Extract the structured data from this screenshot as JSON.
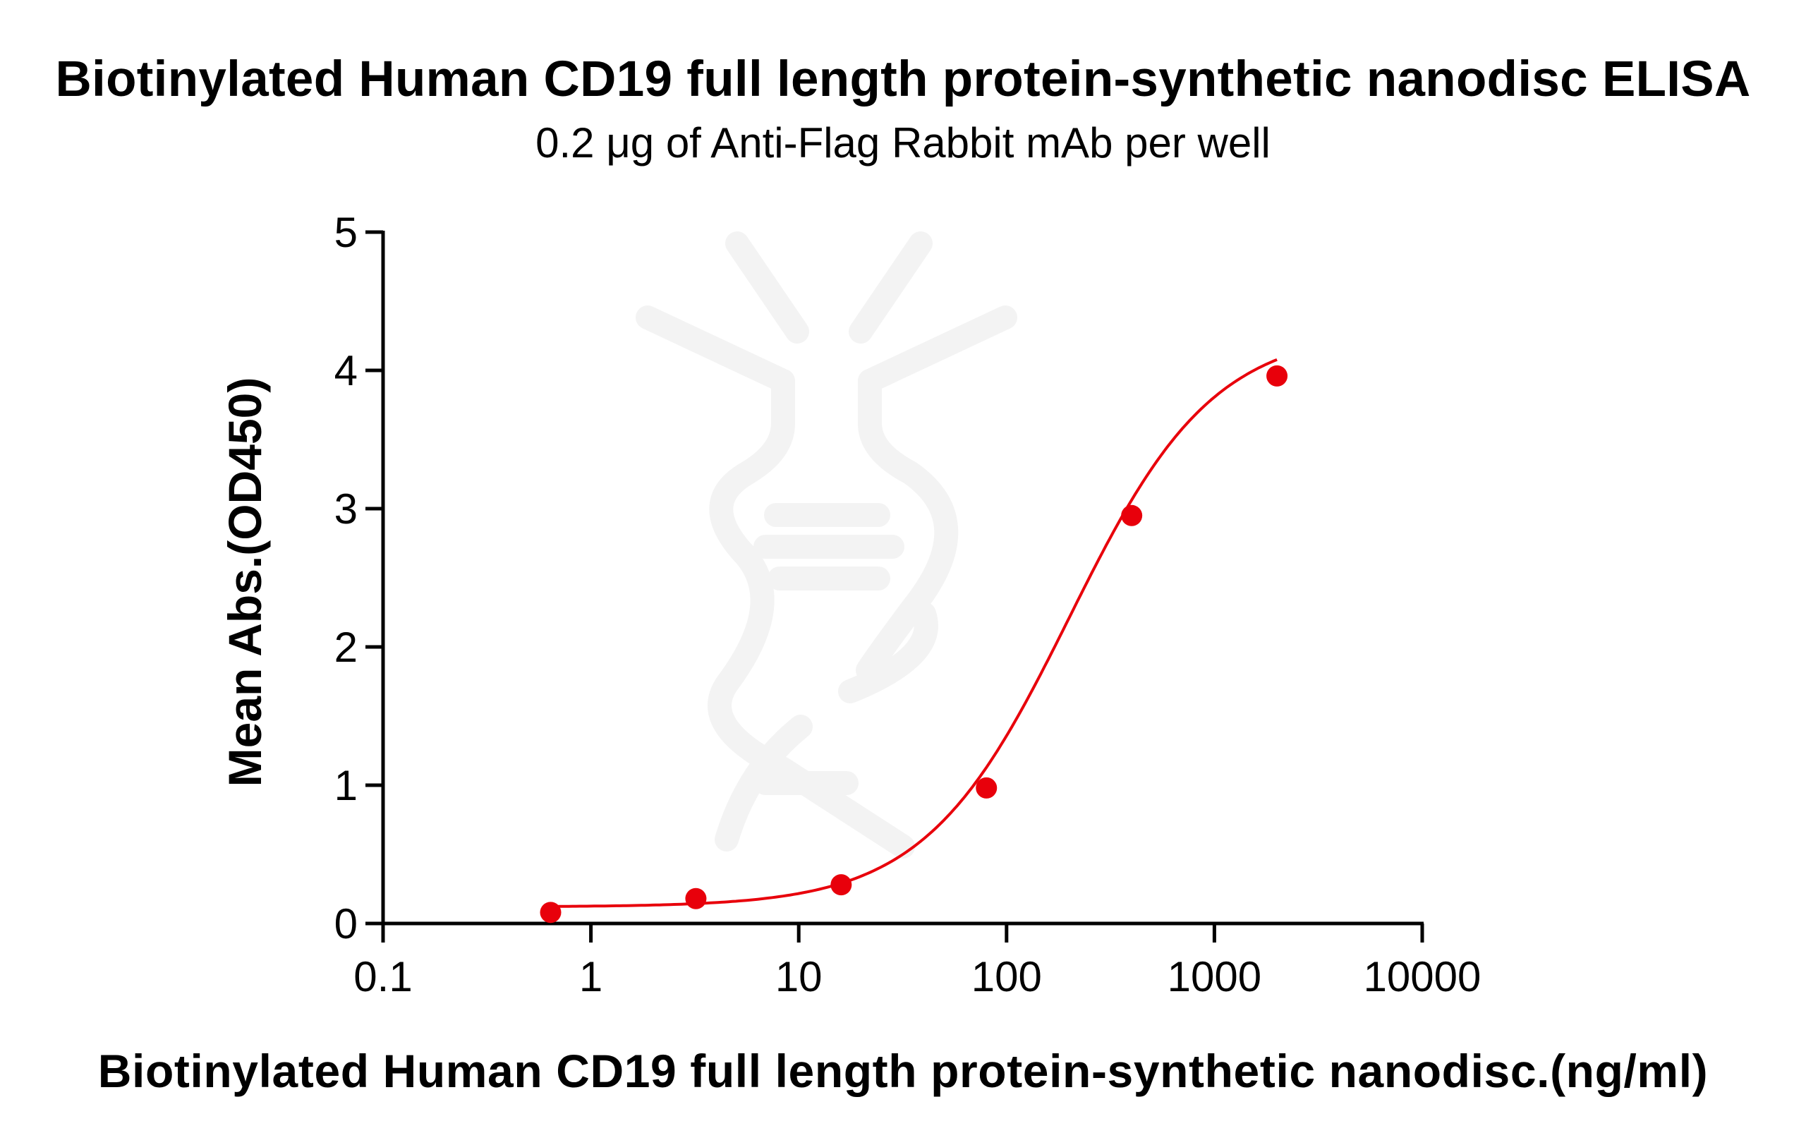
{
  "chart": {
    "title": "Biotinylated Human CD19 full length protein-synthetic nanodisc ELISA",
    "subtitle": "0.2 μg of Anti-Flag Rabbit mAb per well",
    "xlabel": "Biotinylated Human CD19 full length protein-synthetic nanodisc.(ng/ml)",
    "ylabel": "Mean Abs.(OD450)",
    "series_color": "#e8000b",
    "watermark": "dna-logo-watermark"
  },
  "chart_data": {
    "type": "scatter",
    "title": "Biotinylated Human CD19 full length protein-synthetic nanodisc ELISA",
    "subtitle": "0.2 μg of Anti-Flag Rabbit mAb per well",
    "xlabel": "Biotinylated Human CD19 full length protein-synthetic nanodisc.(ng/ml)",
    "ylabel": "Mean Abs.(OD450)",
    "xscale": "log",
    "xlim": [
      0.1,
      10000
    ],
    "ylim": [
      0,
      5
    ],
    "xticks": [
      "0.1",
      "1",
      "10",
      "100",
      "1000",
      "10000"
    ],
    "yticks": [
      "0",
      "1",
      "2",
      "3",
      "4",
      "5"
    ],
    "grid": false,
    "legend": null,
    "series": [
      {
        "name": "Biotinylated Human CD19 full length protein-synthetic nanodisc",
        "x": [
          0.64,
          3.2,
          16,
          80,
          400,
          2000
        ],
        "y": [
          0.08,
          0.18,
          0.28,
          0.98,
          2.95,
          3.96
        ],
        "fit": "4PL sigmoidal curve",
        "color": "#e8000b"
      }
    ]
  }
}
